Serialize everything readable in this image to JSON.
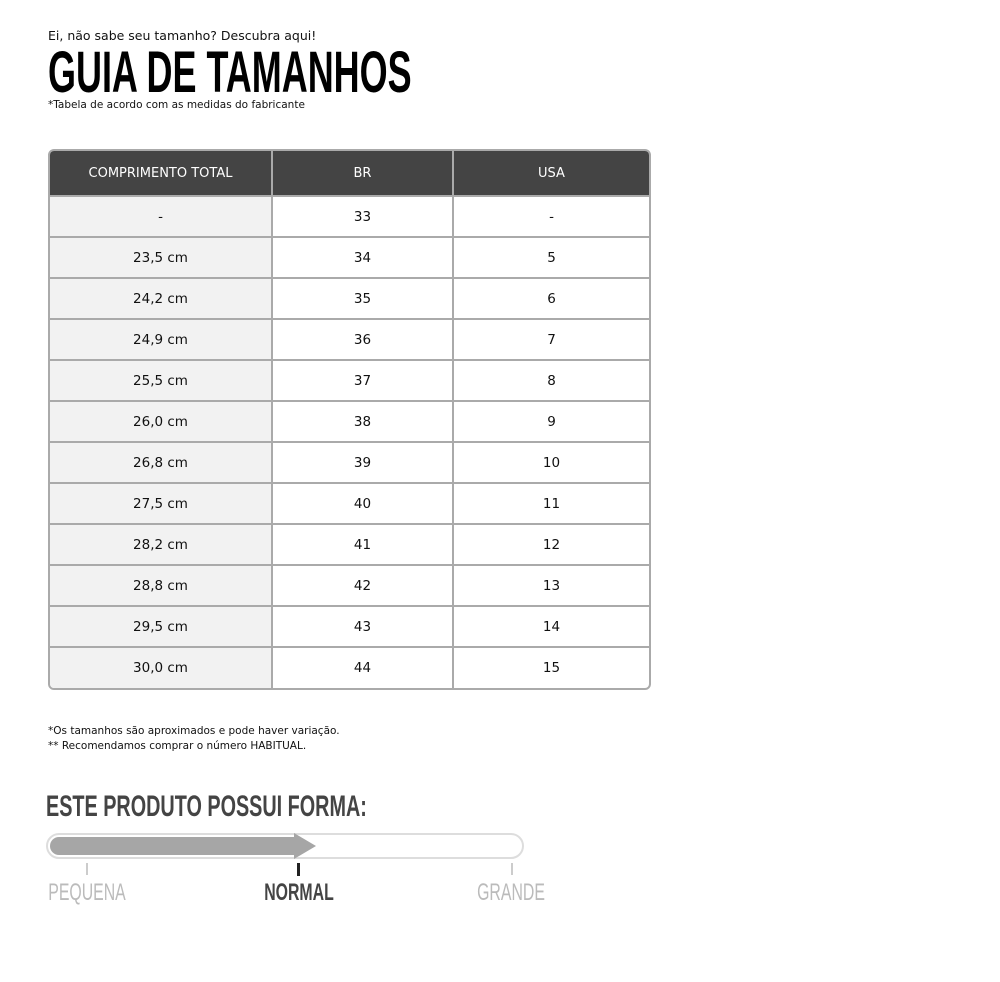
{
  "header": {
    "subtitle": "Ei, não sabe seu tamanho? Descubra aqui!",
    "title": "GUIA DE TAMANHOS",
    "note": "*Tabela de acordo com as medidas do fabricante"
  },
  "table": {
    "columns": [
      "COMPRIMENTO TOTAL",
      "BR",
      "USA"
    ],
    "rows": [
      [
        "-",
        "33",
        "-"
      ],
      [
        "23,5 cm",
        "34",
        "5"
      ],
      [
        "24,2 cm",
        "35",
        "6"
      ],
      [
        "24,9 cm",
        "36",
        "7"
      ],
      [
        "25,5 cm",
        "37",
        "8"
      ],
      [
        "26,0 cm",
        "38",
        "9"
      ],
      [
        "26,8 cm",
        "39",
        "10"
      ],
      [
        "27,5 cm",
        "40",
        "11"
      ],
      [
        "28,2 cm",
        "41",
        "12"
      ],
      [
        "28,8 cm",
        "42",
        "13"
      ],
      [
        "29,5 cm",
        "43",
        "14"
      ],
      [
        "30,0 cm",
        "44",
        "15"
      ]
    ]
  },
  "footnotes": [
    "*Os tamanhos são aproximados e pode haver variação.",
    "** Recomendamos comprar o número HABITUAL."
  ],
  "fit": {
    "title": "ESTE PRODUTO POSSUI FORMA:",
    "labels": [
      "PEQUENA",
      "NORMAL",
      "GRANDE"
    ],
    "selected": "NORMAL",
    "level_percent": 50,
    "colors": {
      "fill": "#a6a6a6",
      "active": "#444444",
      "inactive": "#bbbbbb"
    }
  }
}
